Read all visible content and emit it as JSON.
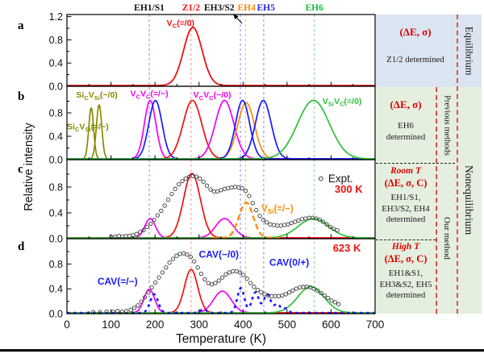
{
  "figure": {
    "panel_letters": [
      "a",
      "b",
      "c",
      "d"
    ],
    "xlabel": "Temperature (K)",
    "ylabel": "Relative intensity"
  },
  "right_column": {
    "a": {
      "title": "(ΔE, σ)",
      "body": "Z1/2 determined"
    },
    "b": {
      "title": "(ΔE, σ)",
      "lines": [
        "EH6",
        "determined"
      ]
    },
    "c": {
      "subtitle": "Room T",
      "title": "(ΔE, σ, C)",
      "lines": [
        "EH1/S1,",
        "EH3/S2, EH4",
        "determined"
      ]
    },
    "d": {
      "subtitle": "High T",
      "title": "(ΔE, σ, C)",
      "lines": [
        "EH1&S1,",
        "EH3&S2, EH5",
        "determined"
      ]
    },
    "vertical": {
      "a": "Equilibrium",
      "b": "Previous methods",
      "cd": "Our method",
      "bcd": "Nonequilibrium"
    }
  },
  "chart_data": {
    "type": "line",
    "title": "",
    "xlabel": "Temperature (K)",
    "ylabel": "Relative intensity",
    "x_range": [
      0,
      700
    ],
    "x_ticks": [
      0,
      100,
      200,
      300,
      400,
      500,
      600,
      700
    ],
    "grid": false,
    "palette": {
      "red": "#ee1111",
      "magenta": "#f400f4",
      "blue": "#1a1aff",
      "olive": "#8a8a00",
      "orange": "#ff8c00",
      "green": "#2bc135",
      "expt": "#3c3c3c"
    },
    "markers": [
      {
        "label": "EH1/S1",
        "T": 187,
        "label_T": 187,
        "text_color": "#111111",
        "line_color": "#7b7bff"
      },
      {
        "label": "Z1/2",
        "T": 282,
        "label_T": 282,
        "text_color": "#ee1111",
        "line_color": "#ff8a8a"
      },
      {
        "label": "EH3/S2",
        "T": 394,
        "label_T": 346,
        "text_color": "#111111",
        "line_color": "#7b7bff",
        "arrow": true
      },
      {
        "label": "EH4",
        "T": 406,
        "label_T": 408,
        "text_color": "#ff8800",
        "line_color": "#ffac55"
      },
      {
        "label": "EH5",
        "T": 447,
        "label_T": 452,
        "text_color": "#2222ee",
        "line_color": "#7b7bff"
      },
      {
        "label": "EH6",
        "T": 562,
        "label_T": 562,
        "text_color": "#18b83c",
        "line_color": "#6fce8f"
      }
    ],
    "panels": [
      {
        "id": "a",
        "y_ticks": [
          0,
          0.4,
          0.8,
          1.2
        ],
        "curves": [
          {
            "color": "red",
            "style": "solid",
            "width": 1.8,
            "peaks": [
              [
                286,
                21,
                1.0
              ]
            ]
          }
        ],
        "labels": [
          {
            "t": 258,
            "v": 1.04,
            "color": "red",
            "text": "V_{C}(=/0)"
          }
        ]
      },
      {
        "id": "b",
        "y_ticks": [
          0,
          0.4,
          0.8
        ],
        "curves": [
          {
            "color": "olive",
            "peaks": [
              [
                55,
                5.5,
                0.88
              ]
            ]
          },
          {
            "color": "olive",
            "peaks": [
              [
                73,
                6,
                0.93
              ]
            ]
          },
          {
            "color": "magenta",
            "peaks": [
              [
                189,
                13,
                1.0
              ]
            ]
          },
          {
            "color": "blue",
            "peaks": [
              [
                201,
                15,
                1.0
              ]
            ]
          },
          {
            "color": "red",
            "peaks": [
              [
                285,
                21,
                1.0
              ]
            ]
          },
          {
            "color": "magenta",
            "peaks": [
              [
                358,
                21,
                1.0
              ]
            ]
          },
          {
            "color": "orange",
            "peaks": [
              [
                407,
                19,
                0.96
              ]
            ]
          },
          {
            "color": "blue",
            "peaks": [
              [
                399,
                16,
                1.0
              ]
            ]
          },
          {
            "color": "blue",
            "peaks": [
              [
                446,
                18,
                1.0
              ]
            ]
          },
          {
            "color": "green",
            "peaks": [
              [
                560,
                36,
                1.0
              ]
            ]
          }
        ],
        "labels": [
          {
            "t": 68,
            "v": 1.06,
            "color": "olive",
            "text": "Si_{C}V_{Si}(−/0)"
          },
          {
            "t": 0,
            "v": 0.52,
            "color": "olive",
            "text": "Si_{C}V_{Si}(=/−)",
            "anchor": "start"
          },
          {
            "t": 187,
            "v": 1.08,
            "color": "magenta",
            "text": "V_{C}V_{C}(=/−)"
          },
          {
            "t": 330,
            "v": 1.06,
            "color": "magenta",
            "text": "V_{C}V_{C}(−/0)"
          },
          {
            "t": 625,
            "v": 0.95,
            "color": "green",
            "text": "V_{Si}V_{C}(=/0)"
          }
        ]
      },
      {
        "id": "c",
        "y_ticks": [
          0,
          0.4,
          0.8
        ],
        "curves": [
          {
            "color": "magenta",
            "peaks": [
              [
                189,
                12,
                0.3
              ],
              [
                358,
                20,
                0.3
              ]
            ]
          },
          {
            "color": "red",
            "peaks": [
              [
                284,
                19,
                1.0
              ]
            ]
          },
          {
            "color": "green",
            "peaks": [
              [
                560,
                34,
                0.3
              ]
            ]
          },
          {
            "color": "orange",
            "style": "dashed",
            "width": 2.4,
            "range": [
              330,
              485
            ],
            "peaks": [
              [
                407,
                16,
                0.55
              ]
            ]
          }
        ],
        "labels": [
          {
            "t": 478,
            "v": 0.42,
            "color": "orange",
            "text": "V_{Si}(=/−)",
            "size": 11.5
          },
          {
            "t": 640,
            "v": 0.71,
            "color": "red",
            "text": "300 K",
            "size": 13
          }
        ],
        "legend": {
          "marker_t": 577,
          "v": 0.93,
          "text": "Expt.",
          "text_color": "#1a1a1a"
        },
        "scatter": [
          [
            100,
            0.02
          ],
          [
            110,
            0.02
          ],
          [
            118,
            0.03
          ],
          [
            126,
            0.02
          ],
          [
            134,
            0.03
          ],
          [
            142,
            0.03
          ],
          [
            150,
            0.04
          ],
          [
            158,
            0.06
          ],
          [
            166,
            0.09
          ],
          [
            174,
            0.12
          ],
          [
            182,
            0.17
          ],
          [
            190,
            0.22
          ],
          [
            198,
            0.28
          ],
          [
            206,
            0.35
          ],
          [
            214,
            0.42
          ],
          [
            222,
            0.5
          ],
          [
            230,
            0.59
          ],
          [
            238,
            0.68
          ],
          [
            246,
            0.76
          ],
          [
            254,
            0.83
          ],
          [
            262,
            0.88
          ],
          [
            270,
            0.92
          ],
          [
            278,
            0.95
          ],
          [
            286,
            0.96
          ],
          [
            294,
            0.95
          ],
          [
            302,
            0.92
          ],
          [
            310,
            0.87
          ],
          [
            318,
            0.81
          ],
          [
            326,
            0.75
          ],
          [
            334,
            0.72
          ],
          [
            342,
            0.72
          ],
          [
            350,
            0.74
          ],
          [
            358,
            0.76
          ],
          [
            366,
            0.77
          ],
          [
            374,
            0.78
          ],
          [
            382,
            0.79
          ],
          [
            390,
            0.78
          ],
          [
            398,
            0.77
          ],
          [
            406,
            0.73
          ],
          [
            414,
            0.65
          ],
          [
            422,
            0.54
          ],
          [
            430,
            0.43
          ],
          [
            438,
            0.34
          ],
          [
            446,
            0.28
          ],
          [
            454,
            0.24
          ],
          [
            462,
            0.21
          ],
          [
            470,
            0.2
          ],
          [
            478,
            0.19
          ],
          [
            486,
            0.19
          ],
          [
            494,
            0.2
          ],
          [
            502,
            0.21
          ],
          [
            510,
            0.23
          ],
          [
            518,
            0.25
          ],
          [
            526,
            0.27
          ],
          [
            534,
            0.29
          ],
          [
            542,
            0.3
          ],
          [
            550,
            0.31
          ],
          [
            558,
            0.31
          ],
          [
            566,
            0.3
          ],
          [
            574,
            0.28
          ],
          [
            582,
            0.25
          ],
          [
            590,
            0.21
          ],
          [
            598,
            0.17
          ],
          [
            606,
            0.14
          ],
          [
            614,
            0.12
          ]
        ]
      },
      {
        "id": "d",
        "y_ticks": [
          0,
          0.4,
          0.8
        ],
        "curves": [
          {
            "color": "magenta",
            "peaks": [
              [
                187,
                12,
                0.38
              ],
              [
                353,
                20,
                0.35
              ]
            ]
          },
          {
            "color": "red",
            "peaks": [
              [
                282,
                15,
                0.7
              ]
            ]
          },
          {
            "color": "green",
            "peaks": [
              [
                554,
                30,
                0.42
              ]
            ]
          },
          {
            "color": "blue",
            "style": "dotted",
            "width": 2.6,
            "peaks": [
              [
                198,
                9,
                0.3
              ],
              [
                310,
                7,
                0.06
              ],
              [
                395,
                8,
                0.4
              ],
              [
                428,
                8,
                0.33
              ],
              [
                455,
                8,
                0.3
              ],
              [
                478,
                7,
                0.14
              ],
              [
                497,
                6,
                0.07
              ]
            ]
          }
        ],
        "labels": [
          {
            "t": 115,
            "v": 0.47,
            "color": "blue",
            "text": "CAV(=/−)",
            "size": 12
          },
          {
            "t": 345,
            "v": 0.9,
            "color": "blue",
            "text": "CAV(−/0)",
            "size": 12
          },
          {
            "t": 505,
            "v": 0.77,
            "color": "blue",
            "text": "CAV(0/+)",
            "size": 12
          },
          {
            "t": 636,
            "v": 1.0,
            "color": "red",
            "text": "623 K",
            "size": 13
          }
        ],
        "scatter": [
          [
            60,
            0.01
          ],
          [
            75,
            0.01
          ],
          [
            90,
            0.02
          ],
          [
            105,
            0.02
          ],
          [
            115,
            0.03
          ],
          [
            125,
            0.02
          ],
          [
            135,
            0.03
          ],
          [
            145,
            0.05
          ],
          [
            153,
            0.08
          ],
          [
            161,
            0.12
          ],
          [
            169,
            0.18
          ],
          [
            177,
            0.25
          ],
          [
            185,
            0.33
          ],
          [
            193,
            0.41
          ],
          [
            201,
            0.49
          ],
          [
            209,
            0.57
          ],
          [
            217,
            0.65
          ],
          [
            225,
            0.73
          ],
          [
            233,
            0.81
          ],
          [
            241,
            0.87
          ],
          [
            249,
            0.92
          ],
          [
            257,
            0.95
          ],
          [
            265,
            0.96
          ],
          [
            273,
            0.94
          ],
          [
            281,
            0.9
          ],
          [
            289,
            0.83
          ],
          [
            297,
            0.73
          ],
          [
            305,
            0.63
          ],
          [
            313,
            0.54
          ],
          [
            321,
            0.48
          ],
          [
            329,
            0.46
          ],
          [
            337,
            0.48
          ],
          [
            345,
            0.52
          ],
          [
            353,
            0.57
          ],
          [
            361,
            0.62
          ],
          [
            369,
            0.65
          ],
          [
            377,
            0.67
          ],
          [
            385,
            0.67
          ],
          [
            393,
            0.65
          ],
          [
            401,
            0.61
          ],
          [
            409,
            0.55
          ],
          [
            417,
            0.48
          ],
          [
            425,
            0.42
          ],
          [
            433,
            0.37
          ],
          [
            441,
            0.33
          ],
          [
            449,
            0.3
          ],
          [
            457,
            0.28
          ],
          [
            465,
            0.27
          ],
          [
            473,
            0.27
          ],
          [
            481,
            0.27
          ],
          [
            489,
            0.28
          ],
          [
            497,
            0.3
          ],
          [
            505,
            0.33
          ],
          [
            513,
            0.36
          ],
          [
            521,
            0.39
          ],
          [
            529,
            0.41
          ],
          [
            537,
            0.42
          ],
          [
            545,
            0.42
          ],
          [
            553,
            0.41
          ],
          [
            561,
            0.39
          ],
          [
            569,
            0.36
          ],
          [
            577,
            0.32
          ],
          [
            585,
            0.28
          ],
          [
            593,
            0.24
          ],
          [
            601,
            0.2
          ],
          [
            609,
            0.17
          ],
          [
            617,
            0.14
          ]
        ]
      }
    ]
  }
}
